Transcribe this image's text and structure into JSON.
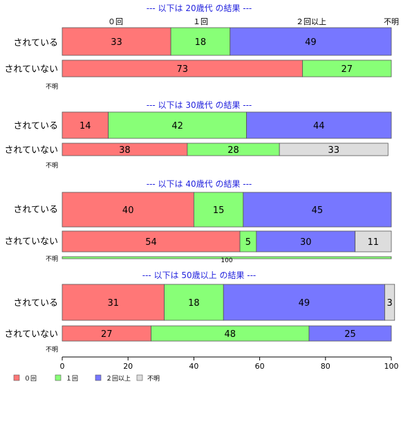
{
  "chart_data": {
    "type": "bar",
    "orientation": "horizontal-stacked",
    "title": "",
    "xlim": [
      0,
      100
    ],
    "x_ticks": [
      0,
      20,
      40,
      60,
      80,
      100
    ],
    "legend": {
      "placement": "bottom-left",
      "entries": [
        {
          "label": "０回",
          "color": "#ff7777"
        },
        {
          "label": "１回",
          "color": "#88ff77"
        },
        {
          "label": "２回以上",
          "color": "#7777ff"
        },
        {
          "label": "不明",
          "color": "#dddddd"
        }
      ]
    },
    "top_labels": [
      "０回",
      "１回",
      "２回以上",
      "不明"
    ],
    "colors": [
      "#ff7777",
      "#88ff77",
      "#7777ff",
      "#dddddd"
    ],
    "panels": [
      {
        "title": "--- 以下は 20歳代 の結果 ---",
        "rows": [
          {
            "label": "されている",
            "values": [
              33,
              18,
              49,
              0
            ]
          },
          {
            "label": "されていない",
            "values": [
              73,
              27,
              0,
              0
            ]
          },
          {
            "label": "不明",
            "values": [
              0,
              0,
              0,
              0
            ]
          }
        ]
      },
      {
        "title": "--- 以下は 30歳代 の結果 ---",
        "rows": [
          {
            "label": "されている",
            "values": [
              14,
              42,
              44,
              0
            ]
          },
          {
            "label": "されていない",
            "values": [
              38,
              28,
              0,
              33
            ]
          },
          {
            "label": "不明",
            "values": [
              0,
              0,
              0,
              0
            ]
          }
        ]
      },
      {
        "title": "--- 以下は 40歳代 の結果 ---",
        "rows": [
          {
            "label": "されている",
            "values": [
              40,
              15,
              45,
              0
            ]
          },
          {
            "label": "されていない",
            "values": [
              54,
              5,
              30,
              11
            ]
          },
          {
            "label": "不明",
            "values": [
              0,
              100,
              0,
              0
            ]
          }
        ]
      },
      {
        "title": "--- 以下は 50歳以上 の結果 ---",
        "rows": [
          {
            "label": "されている",
            "values": [
              31,
              18,
              49,
              3
            ]
          },
          {
            "label": "されていない",
            "values": [
              27,
              48,
              25,
              0
            ]
          },
          {
            "label": "不明",
            "values": [
              0,
              0,
              0,
              0
            ]
          }
        ]
      }
    ]
  }
}
